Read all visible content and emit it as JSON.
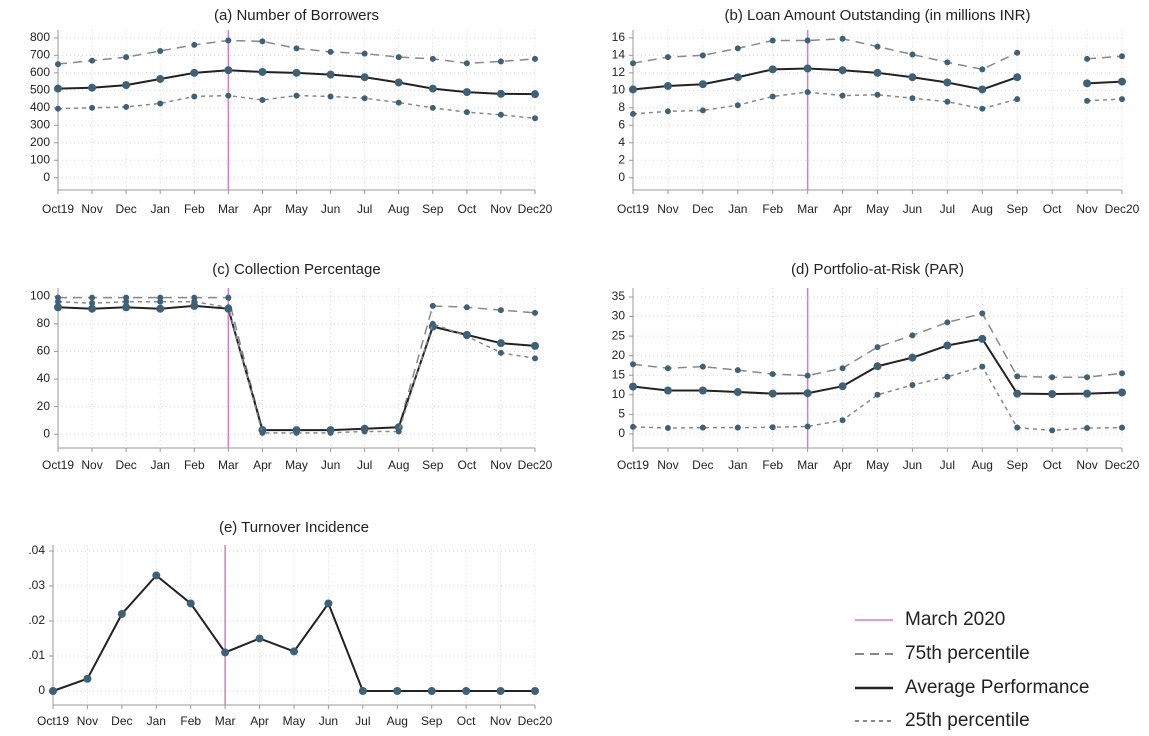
{
  "chart_data": [
    {
      "type": "line",
      "title": "(a) Number of Borrowers",
      "categories": [
        "Oct19",
        "Nov",
        "Dec",
        "Jan",
        "Feb",
        "Mar",
        "Apr",
        "May",
        "Jun",
        "Jul",
        "Aug",
        "Sep",
        "Oct",
        "Nov",
        "Dec20"
      ],
      "series": [
        {
          "name": "75th percentile",
          "color": "#888888",
          "line_style": "dashed",
          "values": [
            650,
            670,
            690,
            725,
            760,
            785,
            780,
            740,
            720,
            710,
            690,
            680,
            655,
            665,
            680
          ]
        },
        {
          "name": "Average Performance",
          "color": "#222222",
          "line_style": "solid",
          "values": [
            510,
            515,
            530,
            565,
            600,
            615,
            605,
            600,
            590,
            575,
            545,
            510,
            490,
            480,
            478
          ]
        },
        {
          "name": "25th percentile",
          "color": "#888888",
          "line_style": "dotted",
          "values": [
            395,
            400,
            405,
            425,
            465,
            470,
            445,
            470,
            465,
            455,
            430,
            400,
            375,
            360,
            340
          ]
        }
      ],
      "marker_color": "#3f6178",
      "ylim": [
        -70,
        845
      ],
      "yticks": [
        0,
        100,
        200,
        300,
        400,
        500,
        600,
        700,
        800
      ],
      "grid": true,
      "vline": "Mar",
      "vline_color": "#d47fbf",
      "vline_label": "March 2020"
    },
    {
      "type": "line",
      "title": "(b) Loan Amount Outstanding (in millions INR)",
      "categories": [
        "Oct19",
        "Nov",
        "Dec",
        "Jan",
        "Feb",
        "Mar",
        "Apr",
        "May",
        "Jun",
        "Jul",
        "Aug",
        "Sep",
        "Oct",
        "Nov",
        "Dec20"
      ],
      "series": [
        {
          "color": "#888888",
          "line_style": "dashed",
          "values": [
            13.1,
            13.8,
            14.0,
            14.8,
            15.7,
            15.7,
            15.9,
            15.0,
            14.1,
            13.2,
            12.4,
            14.3,
            null,
            13.6,
            13.9
          ]
        },
        {
          "color": "#222222",
          "line_style": "solid",
          "values": [
            10.1,
            10.5,
            10.7,
            11.5,
            12.4,
            12.5,
            12.3,
            12.0,
            11.5,
            10.9,
            10.1,
            11.5,
            null,
            10.8,
            11.0
          ]
        },
        {
          "color": "#888888",
          "line_style": "dotted",
          "values": [
            7.3,
            7.6,
            7.7,
            8.3,
            9.3,
            9.8,
            9.4,
            9.5,
            9.1,
            8.7,
            7.9,
            9.0,
            null,
            8.8,
            9.0
          ]
        }
      ],
      "marker_color": "#3f6178",
      "ylim": [
        -1.4,
        16.9
      ],
      "yticks": [
        0,
        2,
        4,
        6,
        8,
        10,
        12,
        14,
        16
      ],
      "grid": true,
      "vline": "Mar",
      "vline_color": "#d47fbf"
    },
    {
      "type": "line",
      "title": "(c) Collection Percentage",
      "categories": [
        "Oct19",
        "Nov",
        "Dec",
        "Jan",
        "Feb",
        "Mar",
        "Apr",
        "May",
        "Jun",
        "Jul",
        "Aug",
        "Sep",
        "Oct",
        "Nov",
        "Dec20"
      ],
      "series": [
        {
          "color": "#888888",
          "line_style": "dashed",
          "values": [
            99,
            99,
            99,
            99,
            99,
            99,
            3,
            3,
            3,
            4,
            5,
            93,
            92,
            90,
            88
          ]
        },
        {
          "color": "#222222",
          "line_style": "solid",
          "values": [
            92,
            91,
            92,
            91,
            93,
            91,
            3,
            3,
            3,
            4,
            5,
            78,
            72,
            66,
            64
          ]
        },
        {
          "color": "#888888",
          "line_style": "dotted",
          "values": [
            96,
            95,
            96,
            96,
            96,
            92,
            1,
            1,
            1,
            2,
            2,
            80,
            71,
            59,
            55
          ]
        }
      ],
      "marker_color": "#3f6178",
      "ylim": [
        -10,
        106
      ],
      "yticks": [
        0,
        20,
        40,
        60,
        80,
        100
      ],
      "grid": true,
      "vline": "Mar",
      "vline_color": "#d47fbf"
    },
    {
      "type": "line",
      "title": "(d) Portfolio-at-Risk (PAR)",
      "categories": [
        "Oct19",
        "Nov",
        "Dec",
        "Jan",
        "Feb",
        "Mar",
        "Apr",
        "May",
        "Jun",
        "Jul",
        "Aug",
        "Sep",
        "Oct",
        "Nov",
        "Dec20"
      ],
      "series": [
        {
          "color": "#888888",
          "line_style": "dashed",
          "values": [
            17.8,
            16.8,
            17.2,
            16.3,
            15.3,
            14.9,
            16.8,
            22.2,
            25.2,
            28.5,
            30.8,
            14.7,
            14.5,
            14.5,
            15.5
          ]
        },
        {
          "color": "#222222",
          "line_style": "solid",
          "values": [
            12.1,
            11.1,
            11.1,
            10.7,
            10.3,
            10.4,
            12.2,
            17.3,
            19.5,
            22.6,
            24.3,
            10.3,
            10.2,
            10.3,
            10.6
          ]
        },
        {
          "color": "#888888",
          "line_style": "dotted",
          "values": [
            1.8,
            1.5,
            1.6,
            1.6,
            1.7,
            1.9,
            3.5,
            10.0,
            12.5,
            14.6,
            17.2,
            1.6,
            0.9,
            1.5,
            1.6
          ]
        }
      ],
      "marker_color": "#3f6178",
      "ylim": [
        -3.6,
        37.3
      ],
      "yticks": [
        0,
        5,
        10,
        15,
        20,
        25,
        30,
        35
      ],
      "grid": true,
      "vline": "Mar",
      "vline_color": "#d47fbf"
    },
    {
      "type": "line",
      "title": "(e) Turnover Incidence",
      "categories": [
        "Oct19",
        "Nov",
        "Dec",
        "Jan",
        "Feb",
        "Mar",
        "Apr",
        "May",
        "Jun",
        "Jul",
        "Aug",
        "Sep",
        "Oct",
        "Nov",
        "Dec20"
      ],
      "series": [
        {
          "color": "#222222",
          "line_style": "solid",
          "values": [
            0,
            0.0035,
            0.022,
            0.033,
            0.025,
            0.011,
            0.015,
            0.0113,
            0.025,
            0,
            0,
            0,
            0,
            0,
            0
          ]
        }
      ],
      "marker_color": "#3f6178",
      "ylim": [
        -0.004,
        0.0417
      ],
      "yticks": [
        0,
        {
          "value": 0.01,
          "label": ".01"
        },
        {
          "value": 0.02,
          "label": ".02"
        },
        {
          "value": 0.03,
          "label": ".03"
        },
        {
          "value": 0.04,
          "label": ".04"
        }
      ],
      "grid": true,
      "vline": "Mar",
      "vline_color": "#d47fbf"
    }
  ]
}
